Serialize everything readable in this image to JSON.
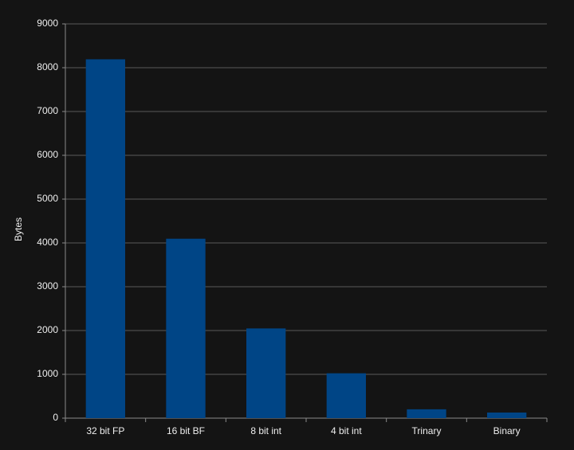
{
  "chart_data": {
    "type": "bar",
    "y_label": "Bytes",
    "categories": [
      "32 bit FP",
      "16 bit BF",
      "8 bit int",
      "4 bit int",
      "Trinary",
      "Binary"
    ],
    "values": [
      8192,
      4096,
      2048,
      1024,
      202,
      128
    ],
    "color": "#004586",
    "ylim": [
      0,
      9000
    ],
    "yticks": [
      0,
      1000,
      2000,
      3000,
      4000,
      5000,
      6000,
      7000,
      8000,
      9000
    ],
    "grid": true
  }
}
